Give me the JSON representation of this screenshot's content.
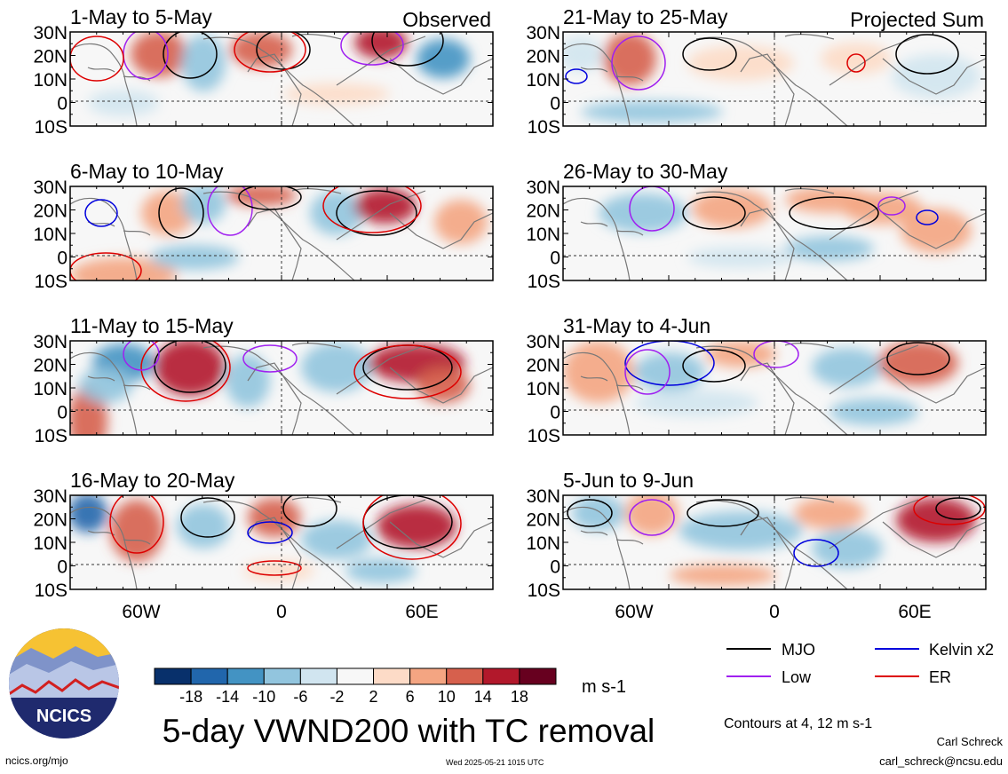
{
  "panels": [
    {
      "id": "p1",
      "title": "1-May to 5-May",
      "tag": "Observed"
    },
    {
      "id": "p2",
      "title": "6-May to 10-May",
      "tag": ""
    },
    {
      "id": "p3",
      "title": "11-May to 15-May",
      "tag": ""
    },
    {
      "id": "p4",
      "title": "16-May to 20-May",
      "tag": ""
    },
    {
      "id": "p5",
      "title": "21-May to 25-May",
      "tag": "Projected Sum"
    },
    {
      "id": "p6",
      "title": "26-May to 30-May",
      "tag": ""
    },
    {
      "id": "p7",
      "title": "31-May to 4-Jun",
      "tag": ""
    },
    {
      "id": "p8",
      "title": "5-Jun to 9-Jun",
      "tag": ""
    }
  ],
  "lat_labels": [
    "30N",
    "20N",
    "10N",
    "0",
    "10S"
  ],
  "lon_labels": [
    "60W",
    "0",
    "60E"
  ],
  "colorbar": {
    "ticks": [
      "-18",
      "-14",
      "-10",
      "-6",
      "-2",
      "2",
      "6",
      "10",
      "14",
      "18"
    ],
    "unit": "m s-1",
    "colors": [
      "#08306b",
      "#2166ac",
      "#4393c3",
      "#92c5de",
      "#d1e5f0",
      "#f7f7f7",
      "#fddbc7",
      "#f4a582",
      "#d6604d",
      "#b2182b",
      "#67001f"
    ]
  },
  "legend": [
    {
      "label": "MJO",
      "color": "#000000"
    },
    {
      "label": "Kelvin x2",
      "color": "#0000dd"
    },
    {
      "label": "Low",
      "color": "#a020f0"
    },
    {
      "label": "ER",
      "color": "#dd0000"
    }
  ],
  "main_title": "5-day VWND200 with TC removal",
  "contours_note": "Contours at 4, 12 m s-1",
  "author": "Carl Schreck",
  "email": "carl_schreck@ncsu.edu",
  "site": "ncics.org/mjo",
  "timestamp": "Wed 2025-05-21 1015 UTC",
  "logo_text": "NCICS"
}
